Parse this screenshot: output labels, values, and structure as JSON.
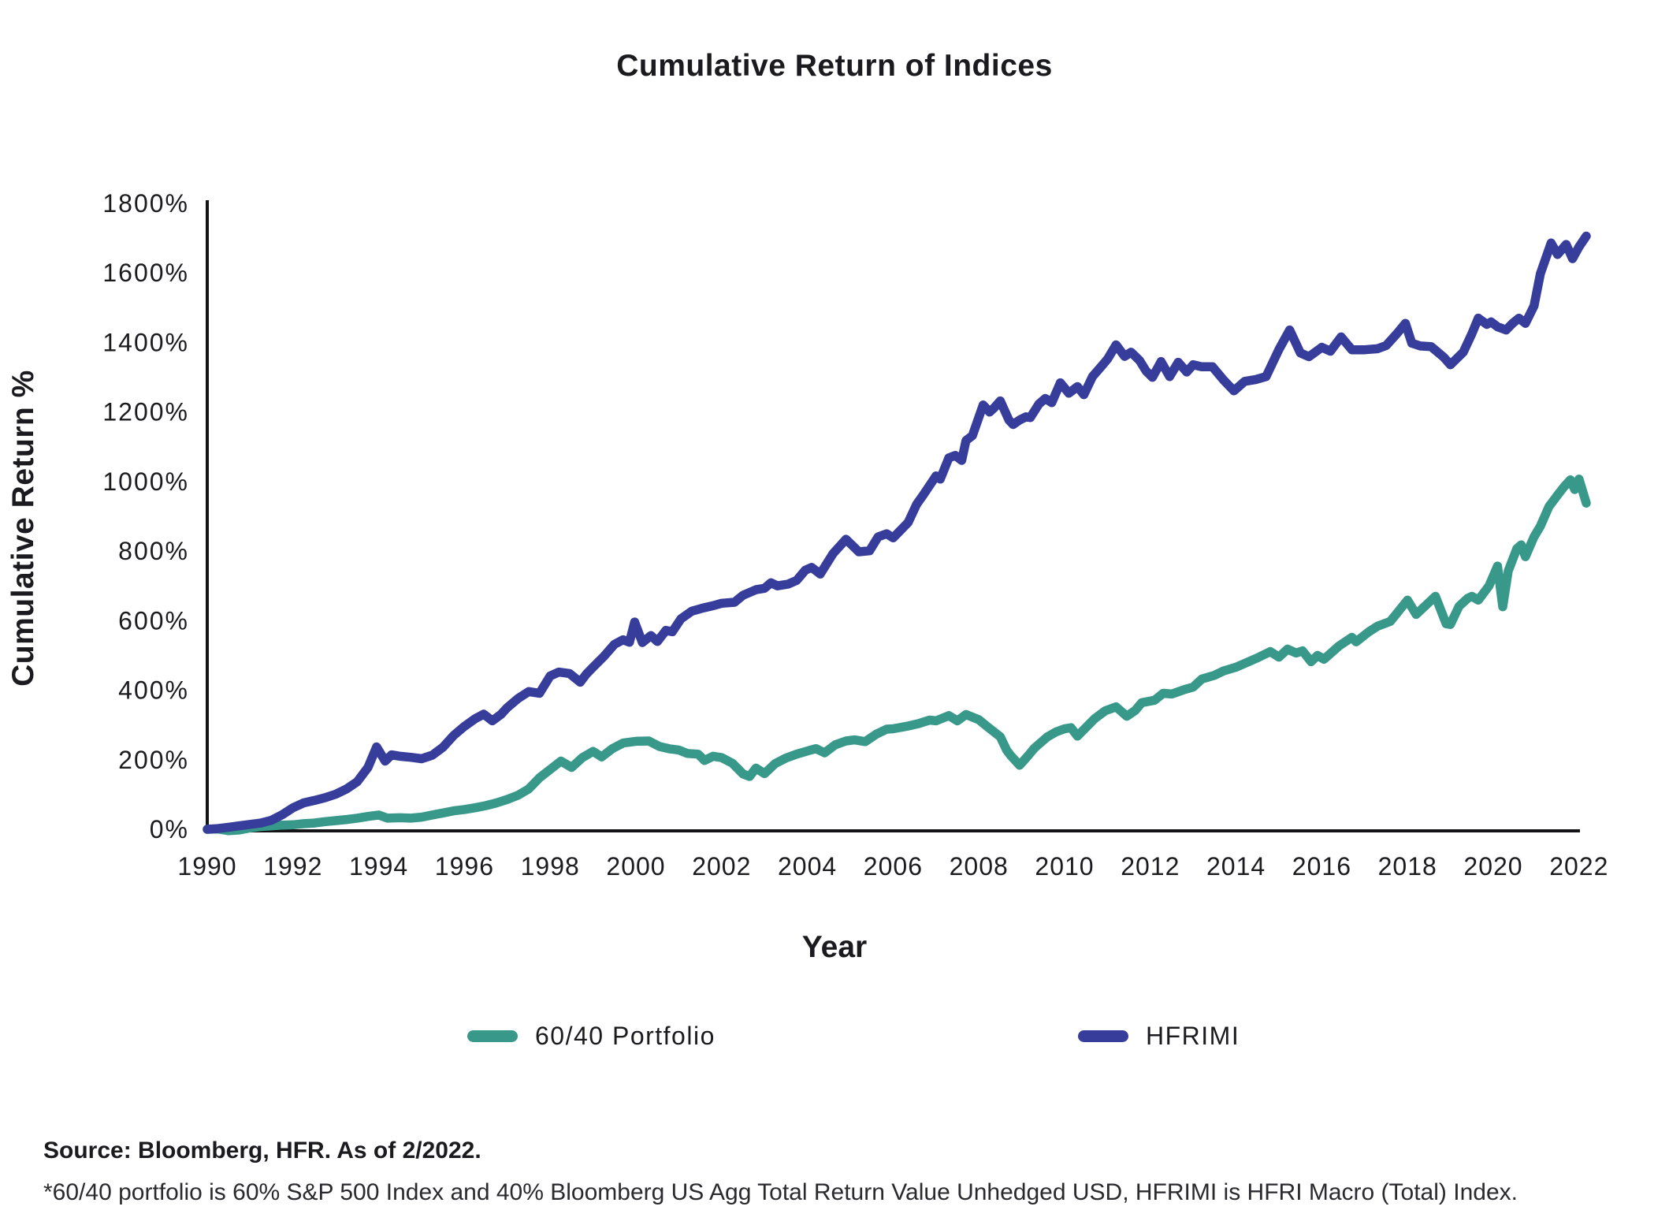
{
  "title": "Cumulative Return of Indices",
  "footer": {
    "source": "Source: Bloomberg, HFR. As of 2/2022.",
    "footnote": "*60/40 portfolio is 60% S&P 500 Index and 40% Bloomberg US Agg Total Return Value Unhedged USD, HFRIMI is HFRI Macro (Total) Index."
  },
  "colors": {
    "axis": "#141417",
    "tick_text": "#1b1b1f",
    "portfolio": "#38998A",
    "hfrimi": "#363D9B"
  },
  "chart_data": {
    "type": "line",
    "title": "Cumulative Return of Indices",
    "xlabel": "Year",
    "ylabel": "Cumulative Return %",
    "xlim": [
      1990,
      2022.4
    ],
    "ylim": [
      0,
      1800
    ],
    "x_ticks": [
      1990,
      1992,
      1994,
      1996,
      1998,
      2000,
      2002,
      2004,
      2006,
      2008,
      2010,
      2012,
      2014,
      2016,
      2018,
      2020,
      2022
    ],
    "y_ticks": [
      0,
      200,
      400,
      600,
      800,
      1000,
      1200,
      1400,
      1600,
      1800
    ],
    "y_tick_suffix": "%",
    "grid": false,
    "legend_position": "bottom",
    "series": [
      {
        "name": "60/40 Portfolio",
        "color": "#38998A",
        "points": [
          [
            1990.0,
            0
          ],
          [
            1990.25,
            1
          ],
          [
            1990.5,
            -4
          ],
          [
            1990.75,
            -2
          ],
          [
            1991.0,
            4
          ],
          [
            1991.25,
            8
          ],
          [
            1991.5,
            10
          ],
          [
            1991.75,
            12
          ],
          [
            1992.0,
            13
          ],
          [
            1992.25,
            16
          ],
          [
            1992.5,
            18
          ],
          [
            1992.75,
            22
          ],
          [
            1993.0,
            25
          ],
          [
            1993.25,
            28
          ],
          [
            1993.5,
            32
          ],
          [
            1993.75,
            37
          ],
          [
            1994.0,
            41
          ],
          [
            1994.2,
            32
          ],
          [
            1994.5,
            33
          ],
          [
            1994.75,
            32
          ],
          [
            1995.0,
            35
          ],
          [
            1995.25,
            41
          ],
          [
            1995.5,
            47
          ],
          [
            1995.75,
            53
          ],
          [
            1996.0,
            57
          ],
          [
            1996.25,
            62
          ],
          [
            1996.5,
            68
          ],
          [
            1996.75,
            76
          ],
          [
            1997.0,
            86
          ],
          [
            1997.25,
            98
          ],
          [
            1997.5,
            116
          ],
          [
            1997.75,
            148
          ],
          [
            1998.0,
            172
          ],
          [
            1998.25,
            196
          ],
          [
            1998.5,
            178
          ],
          [
            1998.75,
            206
          ],
          [
            1999.0,
            224
          ],
          [
            1999.2,
            208
          ],
          [
            1999.45,
            232
          ],
          [
            1999.7,
            248
          ],
          [
            2000.0,
            253
          ],
          [
            2000.3,
            254
          ],
          [
            2000.55,
            238
          ],
          [
            2000.8,
            231
          ],
          [
            2001.0,
            228
          ],
          [
            2001.2,
            218
          ],
          [
            2001.45,
            216
          ],
          [
            2001.6,
            198
          ],
          [
            2001.8,
            210
          ],
          [
            2002.0,
            206
          ],
          [
            2002.25,
            190
          ],
          [
            2002.5,
            159
          ],
          [
            2002.65,
            152
          ],
          [
            2002.8,
            176
          ],
          [
            2003.0,
            160
          ],
          [
            2003.25,
            189
          ],
          [
            2003.5,
            205
          ],
          [
            2003.75,
            216
          ],
          [
            2004.05,
            227
          ],
          [
            2004.2,
            232
          ],
          [
            2004.4,
            220
          ],
          [
            2004.65,
            243
          ],
          [
            2004.9,
            254
          ],
          [
            2005.1,
            257
          ],
          [
            2005.35,
            252
          ],
          [
            2005.6,
            273
          ],
          [
            2005.85,
            288
          ],
          [
            2006.0,
            289
          ],
          [
            2006.35,
            297
          ],
          [
            2006.6,
            304
          ],
          [
            2006.85,
            314
          ],
          [
            2007.0,
            312
          ],
          [
            2007.3,
            327
          ],
          [
            2007.5,
            312
          ],
          [
            2007.7,
            330
          ],
          [
            2008.0,
            315
          ],
          [
            2008.2,
            295
          ],
          [
            2008.5,
            266
          ],
          [
            2008.65,
            227
          ],
          [
            2008.75,
            211
          ],
          [
            2008.95,
            184
          ],
          [
            2009.15,
            212
          ],
          [
            2009.3,
            234
          ],
          [
            2009.6,
            266
          ],
          [
            2009.8,
            280
          ],
          [
            2010.0,
            289
          ],
          [
            2010.15,
            292
          ],
          [
            2010.3,
            268
          ],
          [
            2010.7,
            318
          ],
          [
            2010.95,
            341
          ],
          [
            2011.2,
            352
          ],
          [
            2011.45,
            325
          ],
          [
            2011.65,
            342
          ],
          [
            2011.8,
            364
          ],
          [
            2012.1,
            371
          ],
          [
            2012.3,
            391
          ],
          [
            2012.5,
            389
          ],
          [
            2012.8,
            402
          ],
          [
            2013.0,
            409
          ],
          [
            2013.2,
            432
          ],
          [
            2013.5,
            443
          ],
          [
            2013.7,
            455
          ],
          [
            2014.0,
            466
          ],
          [
            2014.2,
            477
          ],
          [
            2014.5,
            493
          ],
          [
            2014.8,
            511
          ],
          [
            2015.0,
            495
          ],
          [
            2015.2,
            518
          ],
          [
            2015.4,
            507
          ],
          [
            2015.55,
            513
          ],
          [
            2015.75,
            482
          ],
          [
            2015.9,
            500
          ],
          [
            2016.05,
            489
          ],
          [
            2016.4,
            527
          ],
          [
            2016.7,
            552
          ],
          [
            2016.8,
            539
          ],
          [
            2017.1,
            568
          ],
          [
            2017.3,
            584
          ],
          [
            2017.6,
            598
          ],
          [
            2018.0,
            659
          ],
          [
            2018.2,
            618
          ],
          [
            2018.4,
            641
          ],
          [
            2018.65,
            670
          ],
          [
            2018.9,
            591
          ],
          [
            2019.0,
            589
          ],
          [
            2019.2,
            641
          ],
          [
            2019.4,
            664
          ],
          [
            2019.5,
            670
          ],
          [
            2019.65,
            659
          ],
          [
            2019.9,
            700
          ],
          [
            2020.1,
            757
          ],
          [
            2020.22,
            640
          ],
          [
            2020.35,
            743
          ],
          [
            2020.55,
            807
          ],
          [
            2020.65,
            818
          ],
          [
            2020.75,
            784
          ],
          [
            2020.95,
            841
          ],
          [
            2021.1,
            872
          ],
          [
            2021.3,
            928
          ],
          [
            2021.5,
            961
          ],
          [
            2021.65,
            985
          ],
          [
            2021.8,
            1005
          ],
          [
            2021.9,
            977
          ],
          [
            2022.0,
            1007
          ],
          [
            2022.17,
            938
          ]
        ]
      },
      {
        "name": "HFRIMI",
        "color": "#363D9B",
        "points": [
          [
            1990.0,
            0
          ],
          [
            1990.25,
            2
          ],
          [
            1990.5,
            6
          ],
          [
            1990.75,
            10
          ],
          [
            1991.0,
            14
          ],
          [
            1991.25,
            18
          ],
          [
            1991.5,
            26
          ],
          [
            1991.75,
            42
          ],
          [
            1992.0,
            62
          ],
          [
            1992.25,
            76
          ],
          [
            1992.5,
            83
          ],
          [
            1992.75,
            91
          ],
          [
            1993.0,
            101
          ],
          [
            1993.25,
            116
          ],
          [
            1993.5,
            137
          ],
          [
            1993.75,
            178
          ],
          [
            1993.95,
            237
          ],
          [
            1994.15,
            196
          ],
          [
            1994.3,
            214
          ],
          [
            1994.5,
            210
          ],
          [
            1994.75,
            207
          ],
          [
            1995.0,
            203
          ],
          [
            1995.25,
            213
          ],
          [
            1995.5,
            236
          ],
          [
            1995.75,
            270
          ],
          [
            1996.0,
            296
          ],
          [
            1996.25,
            318
          ],
          [
            1996.45,
            331
          ],
          [
            1996.65,
            312
          ],
          [
            1996.85,
            330
          ],
          [
            1997.0,
            350
          ],
          [
            1997.25,
            376
          ],
          [
            1997.5,
            396
          ],
          [
            1997.75,
            391
          ],
          [
            1998.0,
            441
          ],
          [
            1998.2,
            452
          ],
          [
            1998.45,
            448
          ],
          [
            1998.7,
            423
          ],
          [
            1998.85,
            447
          ],
          [
            1999.0,
            466
          ],
          [
            1999.25,
            497
          ],
          [
            1999.5,
            532
          ],
          [
            1999.7,
            545
          ],
          [
            1999.85,
            538
          ],
          [
            1999.97,
            596
          ],
          [
            2000.15,
            537
          ],
          [
            2000.35,
            557
          ],
          [
            2000.5,
            540
          ],
          [
            2000.7,
            572
          ],
          [
            2000.85,
            568
          ],
          [
            2001.05,
            605
          ],
          [
            2001.3,
            627
          ],
          [
            2001.55,
            636
          ],
          [
            2001.8,
            643
          ],
          [
            2002.0,
            650
          ],
          [
            2002.3,
            653
          ],
          [
            2002.5,
            673
          ],
          [
            2002.8,
            689
          ],
          [
            2003.0,
            693
          ],
          [
            2003.15,
            709
          ],
          [
            2003.3,
            700
          ],
          [
            2003.55,
            705
          ],
          [
            2003.75,
            716
          ],
          [
            2003.95,
            745
          ],
          [
            2004.1,
            753
          ],
          [
            2004.3,
            734
          ],
          [
            2004.6,
            793
          ],
          [
            2004.9,
            834
          ],
          [
            2005.2,
            798
          ],
          [
            2005.45,
            801
          ],
          [
            2005.65,
            841
          ],
          [
            2005.85,
            850
          ],
          [
            2006.0,
            838
          ],
          [
            2006.35,
            882
          ],
          [
            2006.55,
            935
          ],
          [
            2006.7,
            961
          ],
          [
            2007.0,
            1016
          ],
          [
            2007.1,
            1007
          ],
          [
            2007.3,
            1068
          ],
          [
            2007.45,
            1075
          ],
          [
            2007.6,
            1061
          ],
          [
            2007.7,
            1118
          ],
          [
            2007.85,
            1132
          ],
          [
            2008.1,
            1220
          ],
          [
            2008.25,
            1200
          ],
          [
            2008.35,
            1211
          ],
          [
            2008.5,
            1232
          ],
          [
            2008.7,
            1177
          ],
          [
            2008.8,
            1164
          ],
          [
            2008.95,
            1177
          ],
          [
            2009.1,
            1186
          ],
          [
            2009.2,
            1184
          ],
          [
            2009.4,
            1223
          ],
          [
            2009.55,
            1239
          ],
          [
            2009.7,
            1227
          ],
          [
            2009.9,
            1284
          ],
          [
            2010.1,
            1254
          ],
          [
            2010.3,
            1273
          ],
          [
            2010.45,
            1250
          ],
          [
            2010.65,
            1302
          ],
          [
            2010.85,
            1330
          ],
          [
            2011.0,
            1352
          ],
          [
            2011.2,
            1393
          ],
          [
            2011.4,
            1360
          ],
          [
            2011.55,
            1372
          ],
          [
            2011.75,
            1348
          ],
          [
            2011.9,
            1318
          ],
          [
            2012.05,
            1300
          ],
          [
            2012.25,
            1345
          ],
          [
            2012.45,
            1302
          ],
          [
            2012.65,
            1343
          ],
          [
            2012.85,
            1315
          ],
          [
            2013.0,
            1336
          ],
          [
            2013.2,
            1330
          ],
          [
            2013.45,
            1330
          ],
          [
            2013.7,
            1293
          ],
          [
            2013.95,
            1261
          ],
          [
            2014.2,
            1288
          ],
          [
            2014.45,
            1293
          ],
          [
            2014.7,
            1302
          ],
          [
            2015.0,
            1380
          ],
          [
            2015.25,
            1436
          ],
          [
            2015.5,
            1370
          ],
          [
            2015.7,
            1359
          ],
          [
            2016.0,
            1386
          ],
          [
            2016.2,
            1375
          ],
          [
            2016.45,
            1416
          ],
          [
            2016.7,
            1379
          ],
          [
            2017.0,
            1379
          ],
          [
            2017.3,
            1382
          ],
          [
            2017.5,
            1391
          ],
          [
            2017.75,
            1425
          ],
          [
            2017.95,
            1455
          ],
          [
            2018.1,
            1398
          ],
          [
            2018.3,
            1390
          ],
          [
            2018.55,
            1388
          ],
          [
            2018.85,
            1357
          ],
          [
            2019.0,
            1336
          ],
          [
            2019.3,
            1372
          ],
          [
            2019.5,
            1425
          ],
          [
            2019.65,
            1470
          ],
          [
            2019.85,
            1452
          ],
          [
            2019.95,
            1459
          ],
          [
            2020.1,
            1445
          ],
          [
            2020.3,
            1436
          ],
          [
            2020.45,
            1455
          ],
          [
            2020.6,
            1470
          ],
          [
            2020.75,
            1455
          ],
          [
            2020.95,
            1505
          ],
          [
            2021.1,
            1598
          ],
          [
            2021.35,
            1686
          ],
          [
            2021.5,
            1653
          ],
          [
            2021.7,
            1682
          ],
          [
            2021.85,
            1641
          ],
          [
            2022.0,
            1675
          ],
          [
            2022.17,
            1706
          ]
        ]
      }
    ]
  }
}
